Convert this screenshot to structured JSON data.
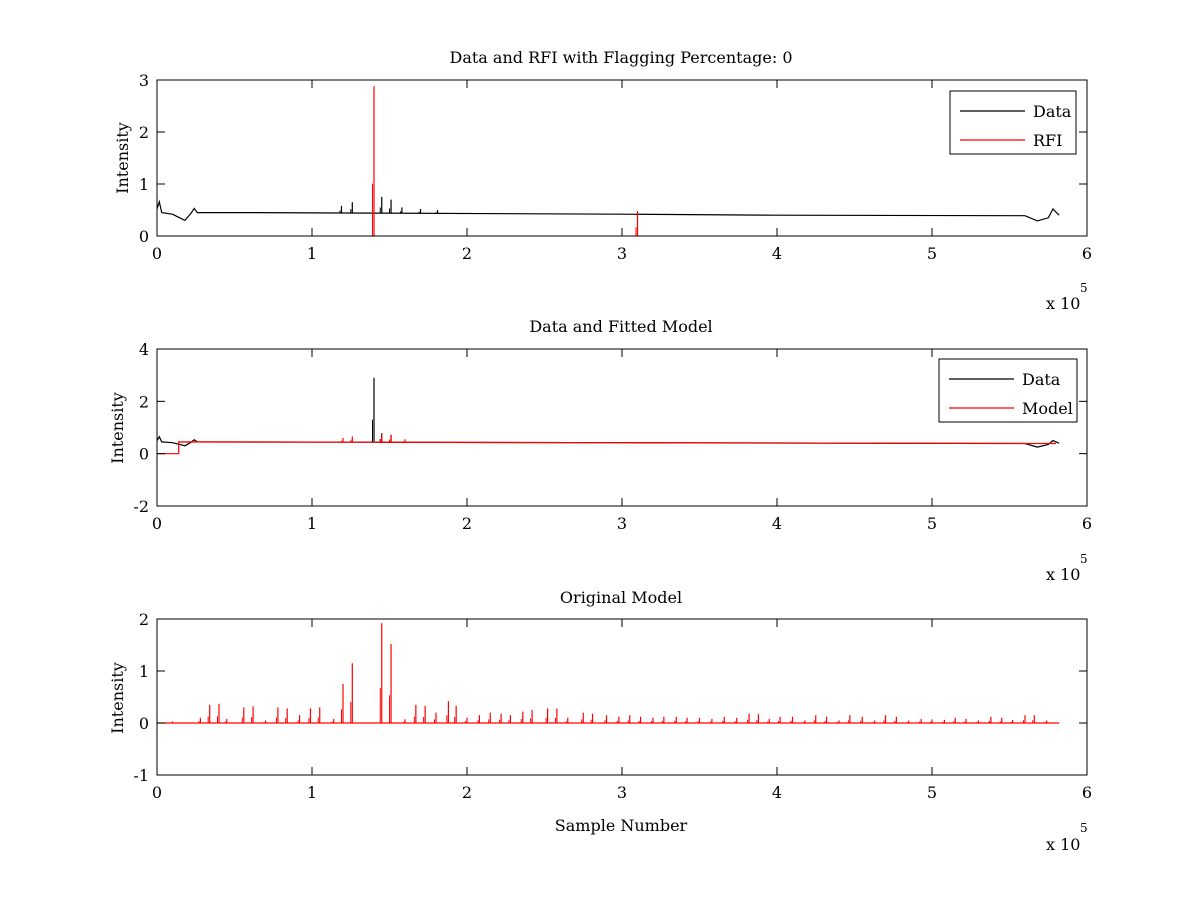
{
  "colors": {
    "data": "#000000",
    "rfi": "#ff0000",
    "model": "#ff0000",
    "axes": "#000000",
    "background": "#ffffff"
  },
  "chart_data": [
    {
      "type": "line",
      "title": "Data and RFI with Flagging Percentage: 0",
      "xlabel": "",
      "ylabel": "Intensity",
      "xlim": [
        0,
        600000
      ],
      "ylim": [
        0,
        3
      ],
      "xticks": [
        0,
        1,
        2,
        3,
        4,
        5,
        6
      ],
      "yticks": [
        0,
        1,
        2,
        3
      ],
      "x_multiplier": "x 10",
      "x_multiplier_exp": "5",
      "legend": {
        "position": "top-right",
        "entries": [
          "Data",
          "RFI"
        ]
      },
      "series": [
        {
          "name": "Data",
          "color": "#000000",
          "baseline": [
            [
              0,
              0.52
            ],
            [
              1500,
              0.66
            ],
            [
              3000,
              0.45
            ],
            [
              10000,
              0.42
            ],
            [
              14000,
              0.36
            ],
            [
              18000,
              0.3
            ],
            [
              22000,
              0.44
            ],
            [
              24000,
              0.53
            ],
            [
              26000,
              0.45
            ],
            [
              60000,
              0.45
            ],
            [
              140000,
              0.44
            ],
            [
              300000,
              0.42
            ],
            [
              400000,
              0.4
            ],
            [
              560000,
              0.39
            ],
            [
              568000,
              0.29
            ],
            [
              575000,
              0.35
            ],
            [
              578000,
              0.52
            ],
            [
              582000,
              0.4
            ]
          ],
          "spikes": [
            [
              119000,
              0.58
            ],
            [
              126000,
              0.65
            ],
            [
              145000,
              0.75
            ],
            [
              151000,
              0.7
            ],
            [
              158000,
              0.55
            ],
            [
              170000,
              0.52
            ],
            [
              181000,
              0.5
            ]
          ]
        },
        {
          "name": "RFI",
          "color": "#ff0000",
          "spikes": [
            [
              140000,
              2.88
            ],
            [
              310000,
              0.48
            ]
          ]
        }
      ]
    },
    {
      "type": "line",
      "title": "Data and Fitted Model",
      "xlabel": "",
      "ylabel": "Intensity",
      "xlim": [
        0,
        600000
      ],
      "ylim": [
        -2,
        4
      ],
      "xticks": [
        0,
        1,
        2,
        3,
        4,
        5,
        6
      ],
      "yticks": [
        -2,
        0,
        2,
        4
      ],
      "x_multiplier": "x 10",
      "x_multiplier_exp": "5",
      "legend": {
        "position": "top-right",
        "entries": [
          "Data",
          "Model"
        ]
      },
      "series": [
        {
          "name": "Data",
          "color": "#000000",
          "baseline": [
            [
              0,
              0.5
            ],
            [
              1500,
              0.65
            ],
            [
              3000,
              0.45
            ],
            [
              10000,
              0.42
            ],
            [
              14000,
              0.36
            ],
            [
              18000,
              0.3
            ],
            [
              22000,
              0.44
            ],
            [
              24000,
              0.53
            ],
            [
              26000,
              0.45
            ],
            [
              140000,
              0.44
            ],
            [
              300000,
              0.42
            ],
            [
              560000,
              0.39
            ],
            [
              568000,
              0.25
            ],
            [
              575000,
              0.35
            ],
            [
              578000,
              0.5
            ],
            [
              582000,
              0.4
            ]
          ],
          "spikes": [
            [
              140000,
              2.9
            ],
            [
              145000,
              0.78
            ],
            [
              151000,
              0.72
            ]
          ]
        },
        {
          "name": "Model",
          "color": "#ff0000",
          "baseline": [
            [
              0,
              0.0
            ],
            [
              14000,
              0.0
            ],
            [
              14000,
              0.45
            ],
            [
              140000,
              0.44
            ],
            [
              300000,
              0.42
            ],
            [
              580000,
              0.39
            ]
          ],
          "spikes": [
            [
              120000,
              0.6
            ],
            [
              126000,
              0.66
            ],
            [
              145000,
              0.78
            ],
            [
              151000,
              0.72
            ],
            [
              160000,
              0.55
            ]
          ]
        }
      ]
    },
    {
      "type": "line",
      "title": "Original Model",
      "xlabel": "Sample Number",
      "ylabel": "Intensity",
      "xlim": [
        0,
        600000
      ],
      "ylim": [
        -1,
        2
      ],
      "xticks": [
        0,
        1,
        2,
        3,
        4,
        5,
        6
      ],
      "yticks": [
        -1,
        0,
        1,
        2
      ],
      "x_multiplier": "x 10",
      "x_multiplier_exp": "5",
      "series": [
        {
          "name": "",
          "color": "#ff0000",
          "baseline": [
            [
              0,
              0.0
            ],
            [
              582000,
              0.0
            ]
          ],
          "spikes": [
            [
              10000,
              0.03
            ],
            [
              28000,
              0.1
            ],
            [
              34000,
              0.35
            ],
            [
              40000,
              0.37
            ],
            [
              45000,
              0.08
            ],
            [
              56000,
              0.3
            ],
            [
              62000,
              0.32
            ],
            [
              70000,
              0.05
            ],
            [
              78000,
              0.3
            ],
            [
              84000,
              0.28
            ],
            [
              92000,
              0.15
            ],
            [
              99000,
              0.28
            ],
            [
              105000,
              0.3
            ],
            [
              114000,
              0.08
            ],
            [
              120000,
              0.75
            ],
            [
              126000,
              1.15
            ],
            [
              145000,
              1.92
            ],
            [
              151000,
              1.52
            ],
            [
              160000,
              0.07
            ],
            [
              167000,
              0.35
            ],
            [
              173000,
              0.33
            ],
            [
              180000,
              0.2
            ],
            [
              188000,
              0.42
            ],
            [
              193000,
              0.33
            ],
            [
              200000,
              0.1
            ],
            [
              208000,
              0.15
            ],
            [
              215000,
              0.2
            ],
            [
              222000,
              0.18
            ],
            [
              228000,
              0.15
            ],
            [
              236000,
              0.22
            ],
            [
              242000,
              0.25
            ],
            [
              252000,
              0.28
            ],
            [
              258000,
              0.28
            ],
            [
              265000,
              0.1
            ],
            [
              275000,
              0.2
            ],
            [
              281000,
              0.18
            ],
            [
              290000,
              0.15
            ],
            [
              298000,
              0.12
            ],
            [
              305000,
              0.15
            ],
            [
              312000,
              0.12
            ],
            [
              320000,
              0.1
            ],
            [
              327000,
              0.12
            ],
            [
              335000,
              0.12
            ],
            [
              342000,
              0.1
            ],
            [
              350000,
              0.1
            ],
            [
              358000,
              0.08
            ],
            [
              366000,
              0.12
            ],
            [
              374000,
              0.1
            ],
            [
              382000,
              0.18
            ],
            [
              388000,
              0.17
            ],
            [
              395000,
              0.08
            ],
            [
              402000,
              0.12
            ],
            [
              410000,
              0.12
            ],
            [
              418000,
              0.05
            ],
            [
              425000,
              0.15
            ],
            [
              432000,
              0.12
            ],
            [
              440000,
              0.05
            ],
            [
              447000,
              0.15
            ],
            [
              455000,
              0.12
            ],
            [
              463000,
              0.05
            ],
            [
              470000,
              0.15
            ],
            [
              477000,
              0.12
            ],
            [
              485000,
              0.05
            ],
            [
              493000,
              0.08
            ],
            [
              500000,
              0.07
            ],
            [
              508000,
              0.06
            ],
            [
              515000,
              0.1
            ],
            [
              522000,
              0.08
            ],
            [
              530000,
              0.05
            ],
            [
              538000,
              0.12
            ],
            [
              545000,
              0.1
            ],
            [
              552000,
              0.06
            ],
            [
              560000,
              0.15
            ],
            [
              566000,
              0.15
            ],
            [
              574000,
              0.05
            ]
          ]
        }
      ]
    }
  ]
}
